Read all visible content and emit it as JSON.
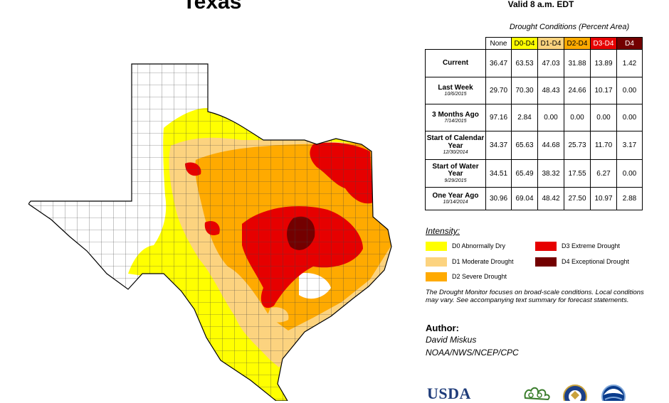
{
  "header": {
    "title": "Texas",
    "valid": "Valid 8 a.m. EDT"
  },
  "table": {
    "caption": "Drought Conditions (Percent Area)",
    "columns": [
      "None",
      "D0-D4",
      "D1-D4",
      "D2-D4",
      "D3-D4",
      "D4"
    ],
    "rows": [
      {
        "label": "Current",
        "date": "",
        "values": [
          "36.47",
          "63.53",
          "47.03",
          "31.88",
          "13.89",
          "1.42"
        ]
      },
      {
        "label": "Last Week",
        "date": "10/6/2015",
        "values": [
          "29.70",
          "70.30",
          "48.43",
          "24.66",
          "10.17",
          "0.00"
        ]
      },
      {
        "label": "3 Months Ago",
        "date": "7/14/2015",
        "values": [
          "97.16",
          "2.84",
          "0.00",
          "0.00",
          "0.00",
          "0.00"
        ]
      },
      {
        "label": "Start of Calendar Year",
        "date": "12/30/2014",
        "values": [
          "34.37",
          "65.63",
          "44.68",
          "25.73",
          "11.70",
          "3.17"
        ]
      },
      {
        "label": "Start of Water Year",
        "date": "9/29/2015",
        "values": [
          "34.51",
          "65.49",
          "38.32",
          "17.55",
          "6.27",
          "0.00"
        ]
      },
      {
        "label": "One Year Ago",
        "date": "10/14/2014",
        "values": [
          "30.96",
          "69.04",
          "48.42",
          "27.50",
          "10.97",
          "2.88"
        ]
      }
    ]
  },
  "legend": {
    "heading": "Intensity:",
    "items": [
      {
        "label": "D0 Abnormally Dry",
        "color": "#ffff00"
      },
      {
        "label": "D1 Moderate Drought",
        "color": "#fcd37f"
      },
      {
        "label": "D2 Severe Drought",
        "color": "#ffaa00"
      },
      {
        "label": "D3 Extreme Drought",
        "color": "#e60000"
      },
      {
        "label": "D4 Exceptional Drought",
        "color": "#730000"
      }
    ]
  },
  "note": "The Drought Monitor focuses on broad-scale conditions. Local conditions may vary. See accompanying text summary for forecast statements.",
  "author": {
    "heading": "Author:",
    "name": "David Miskus",
    "org": "NOAA/NWS/NCEP/CPC"
  },
  "logos": {
    "usda": "USDA",
    "icons": [
      "ndmc-logo-icon",
      "commerce-seal-icon",
      "noaa-logo-icon"
    ]
  }
}
